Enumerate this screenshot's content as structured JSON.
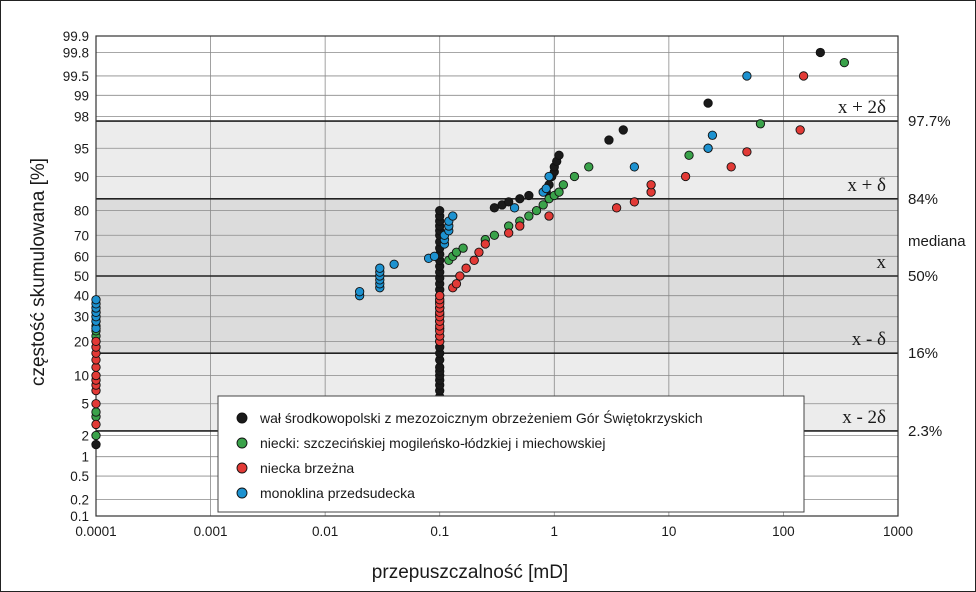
{
  "chart_data": {
    "type": "scatter",
    "xlabel": "przepuszczalność [mD]",
    "ylabel": "częstość skumulowana [%]",
    "x_scale": "log",
    "y_scale": "probability",
    "xlim": [
      0.0001,
      1000
    ],
    "ylim": [
      0.1,
      99.9
    ],
    "grid": true,
    "legend_position": "bottom-center",
    "x_ticks": [
      "0.0001",
      "0.001",
      "0.01",
      "0.1",
      "1",
      "10",
      "100",
      "1000"
    ],
    "y_ticks": [
      "0.1",
      "0.2",
      "0.5",
      "1",
      "2",
      "5",
      "10",
      "20",
      "30",
      "40",
      "50",
      "60",
      "70",
      "80",
      "90",
      "95",
      "98",
      "99",
      "99.5",
      "99.8",
      "99.9"
    ],
    "bands": [
      {
        "y": 97.7,
        "right_label": "97.7%",
        "symbol": "x + 2δ"
      },
      {
        "y": 84,
        "right_label": "84%",
        "symbol": "x + δ"
      },
      {
        "y": 50,
        "right_label": "50%",
        "mid_label": "mediana",
        "symbol": "x"
      },
      {
        "y": 16,
        "right_label": "16%",
        "symbol": "x - δ"
      },
      {
        "y": 2.3,
        "right_label": "2.3%",
        "symbol": "x - 2δ"
      }
    ],
    "series": [
      {
        "name": "wał środkowopolski z mezozoicznym obrzeżeniem Gór Świętokrzyskich",
        "color": "#1a1a1a",
        "points": [
          [
            0.0001,
            1.5
          ],
          [
            0.1,
            6
          ],
          [
            0.1,
            7
          ],
          [
            0.1,
            8
          ],
          [
            0.1,
            9
          ],
          [
            0.1,
            10
          ],
          [
            0.1,
            11
          ],
          [
            0.1,
            12
          ],
          [
            0.1,
            14
          ],
          [
            0.1,
            16
          ],
          [
            0.1,
            18
          ],
          [
            0.1,
            20
          ],
          [
            0.1,
            22
          ],
          [
            0.1,
            25
          ],
          [
            0.1,
            28
          ],
          [
            0.1,
            31
          ],
          [
            0.1,
            34
          ],
          [
            0.1,
            37
          ],
          [
            0.1,
            40
          ],
          [
            0.1,
            43
          ],
          [
            0.1,
            46
          ],
          [
            0.1,
            49
          ],
          [
            0.1,
            52
          ],
          [
            0.1,
            55
          ],
          [
            0.1,
            58
          ],
          [
            0.1,
            61
          ],
          [
            0.1,
            64
          ],
          [
            0.1,
            67
          ],
          [
            0.1,
            70
          ],
          [
            0.1,
            72
          ],
          [
            0.1,
            74
          ],
          [
            0.1,
            76
          ],
          [
            0.1,
            78
          ],
          [
            0.1,
            80
          ],
          [
            0.075,
            4
          ],
          [
            0.3,
            81
          ],
          [
            0.35,
            82
          ],
          [
            0.4,
            83
          ],
          [
            0.5,
            84
          ],
          [
            0.6,
            85
          ],
          [
            0.85,
            86
          ],
          [
            0.9,
            88
          ],
          [
            0.95,
            90
          ],
          [
            1.0,
            91
          ],
          [
            1.0,
            92
          ],
          [
            1.05,
            93
          ],
          [
            1.1,
            94
          ],
          [
            3,
            96
          ],
          [
            4,
            97
          ],
          [
            22,
            98.7
          ],
          [
            210,
            99.8
          ]
        ]
      },
      {
        "name": "niecki: szczecińskiej mogileńsko-łódzkiej i miechowskiej",
        "color": "#3aa24a",
        "points": [
          [
            0.0001,
            2
          ],
          [
            0.0001,
            3.5
          ],
          [
            0.0001,
            4
          ],
          [
            0.0001,
            20
          ],
          [
            0.0001,
            22
          ],
          [
            0.0001,
            24
          ],
          [
            0.0001,
            26
          ],
          [
            0.0001,
            28
          ],
          [
            0.0001,
            30
          ],
          [
            0.0001,
            32
          ],
          [
            0.12,
            58
          ],
          [
            0.13,
            60
          ],
          [
            0.14,
            62
          ],
          [
            0.16,
            64
          ],
          [
            0.25,
            68
          ],
          [
            0.3,
            70
          ],
          [
            0.4,
            74
          ],
          [
            0.5,
            76
          ],
          [
            0.6,
            78
          ],
          [
            0.7,
            80
          ],
          [
            0.8,
            82
          ],
          [
            0.9,
            84
          ],
          [
            1.0,
            85
          ],
          [
            1.1,
            86
          ],
          [
            1.2,
            88
          ],
          [
            1.5,
            90
          ],
          [
            2,
            92
          ],
          [
            15,
            94
          ],
          [
            22,
            95
          ],
          [
            63,
            97.5
          ],
          [
            340,
            99.7
          ]
        ]
      },
      {
        "name": "niecka brzeżna",
        "color": "#e23a36",
        "points": [
          [
            0.0001,
            2.8
          ],
          [
            0.0001,
            5
          ],
          [
            0.0001,
            7
          ],
          [
            0.0001,
            8
          ],
          [
            0.0001,
            9
          ],
          [
            0.0001,
            10
          ],
          [
            0.0001,
            12
          ],
          [
            0.0001,
            14
          ],
          [
            0.0001,
            16
          ],
          [
            0.0001,
            18
          ],
          [
            0.0001,
            20
          ],
          [
            0.1,
            20
          ],
          [
            0.1,
            22
          ],
          [
            0.1,
            24
          ],
          [
            0.1,
            26
          ],
          [
            0.1,
            28
          ],
          [
            0.1,
            30
          ],
          [
            0.1,
            32
          ],
          [
            0.1,
            34
          ],
          [
            0.1,
            36
          ],
          [
            0.1,
            38
          ],
          [
            0.1,
            40
          ],
          [
            0.13,
            44
          ],
          [
            0.14,
            46
          ],
          [
            0.15,
            50
          ],
          [
            0.17,
            54
          ],
          [
            0.2,
            58
          ],
          [
            0.22,
            62
          ],
          [
            0.25,
            66
          ],
          [
            0.4,
            71
          ],
          [
            0.5,
            74
          ],
          [
            0.9,
            78
          ],
          [
            3.5,
            81
          ],
          [
            5,
            83
          ],
          [
            7,
            86
          ],
          [
            7,
            88
          ],
          [
            14,
            90
          ],
          [
            35,
            92
          ],
          [
            48,
            94.5
          ],
          [
            140,
            97
          ],
          [
            150,
            99.5
          ]
        ]
      },
      {
        "name": "monoklina przedsudecka",
        "color": "#1d92d0",
        "points": [
          [
            0.0001,
            25
          ],
          [
            0.0001,
            28
          ],
          [
            0.0001,
            30
          ],
          [
            0.0001,
            32
          ],
          [
            0.0001,
            34
          ],
          [
            0.0001,
            36
          ],
          [
            0.0001,
            38
          ],
          [
            0.02,
            40
          ],
          [
            0.02,
            42
          ],
          [
            0.03,
            44
          ],
          [
            0.03,
            46
          ],
          [
            0.03,
            48
          ],
          [
            0.03,
            50
          ],
          [
            0.03,
            52
          ],
          [
            0.03,
            54
          ],
          [
            0.04,
            56
          ],
          [
            0.08,
            59
          ],
          [
            0.09,
            60
          ],
          [
            0.11,
            66
          ],
          [
            0.11,
            68
          ],
          [
            0.11,
            70
          ],
          [
            0.12,
            72
          ],
          [
            0.12,
            74
          ],
          [
            0.12,
            76
          ],
          [
            0.13,
            78
          ],
          [
            0.45,
            81
          ],
          [
            0.8,
            86
          ],
          [
            0.85,
            87
          ],
          [
            0.9,
            90
          ],
          [
            5,
            92
          ],
          [
            22,
            95
          ],
          [
            24,
            96.5
          ],
          [
            48,
            99.5
          ]
        ]
      }
    ]
  }
}
